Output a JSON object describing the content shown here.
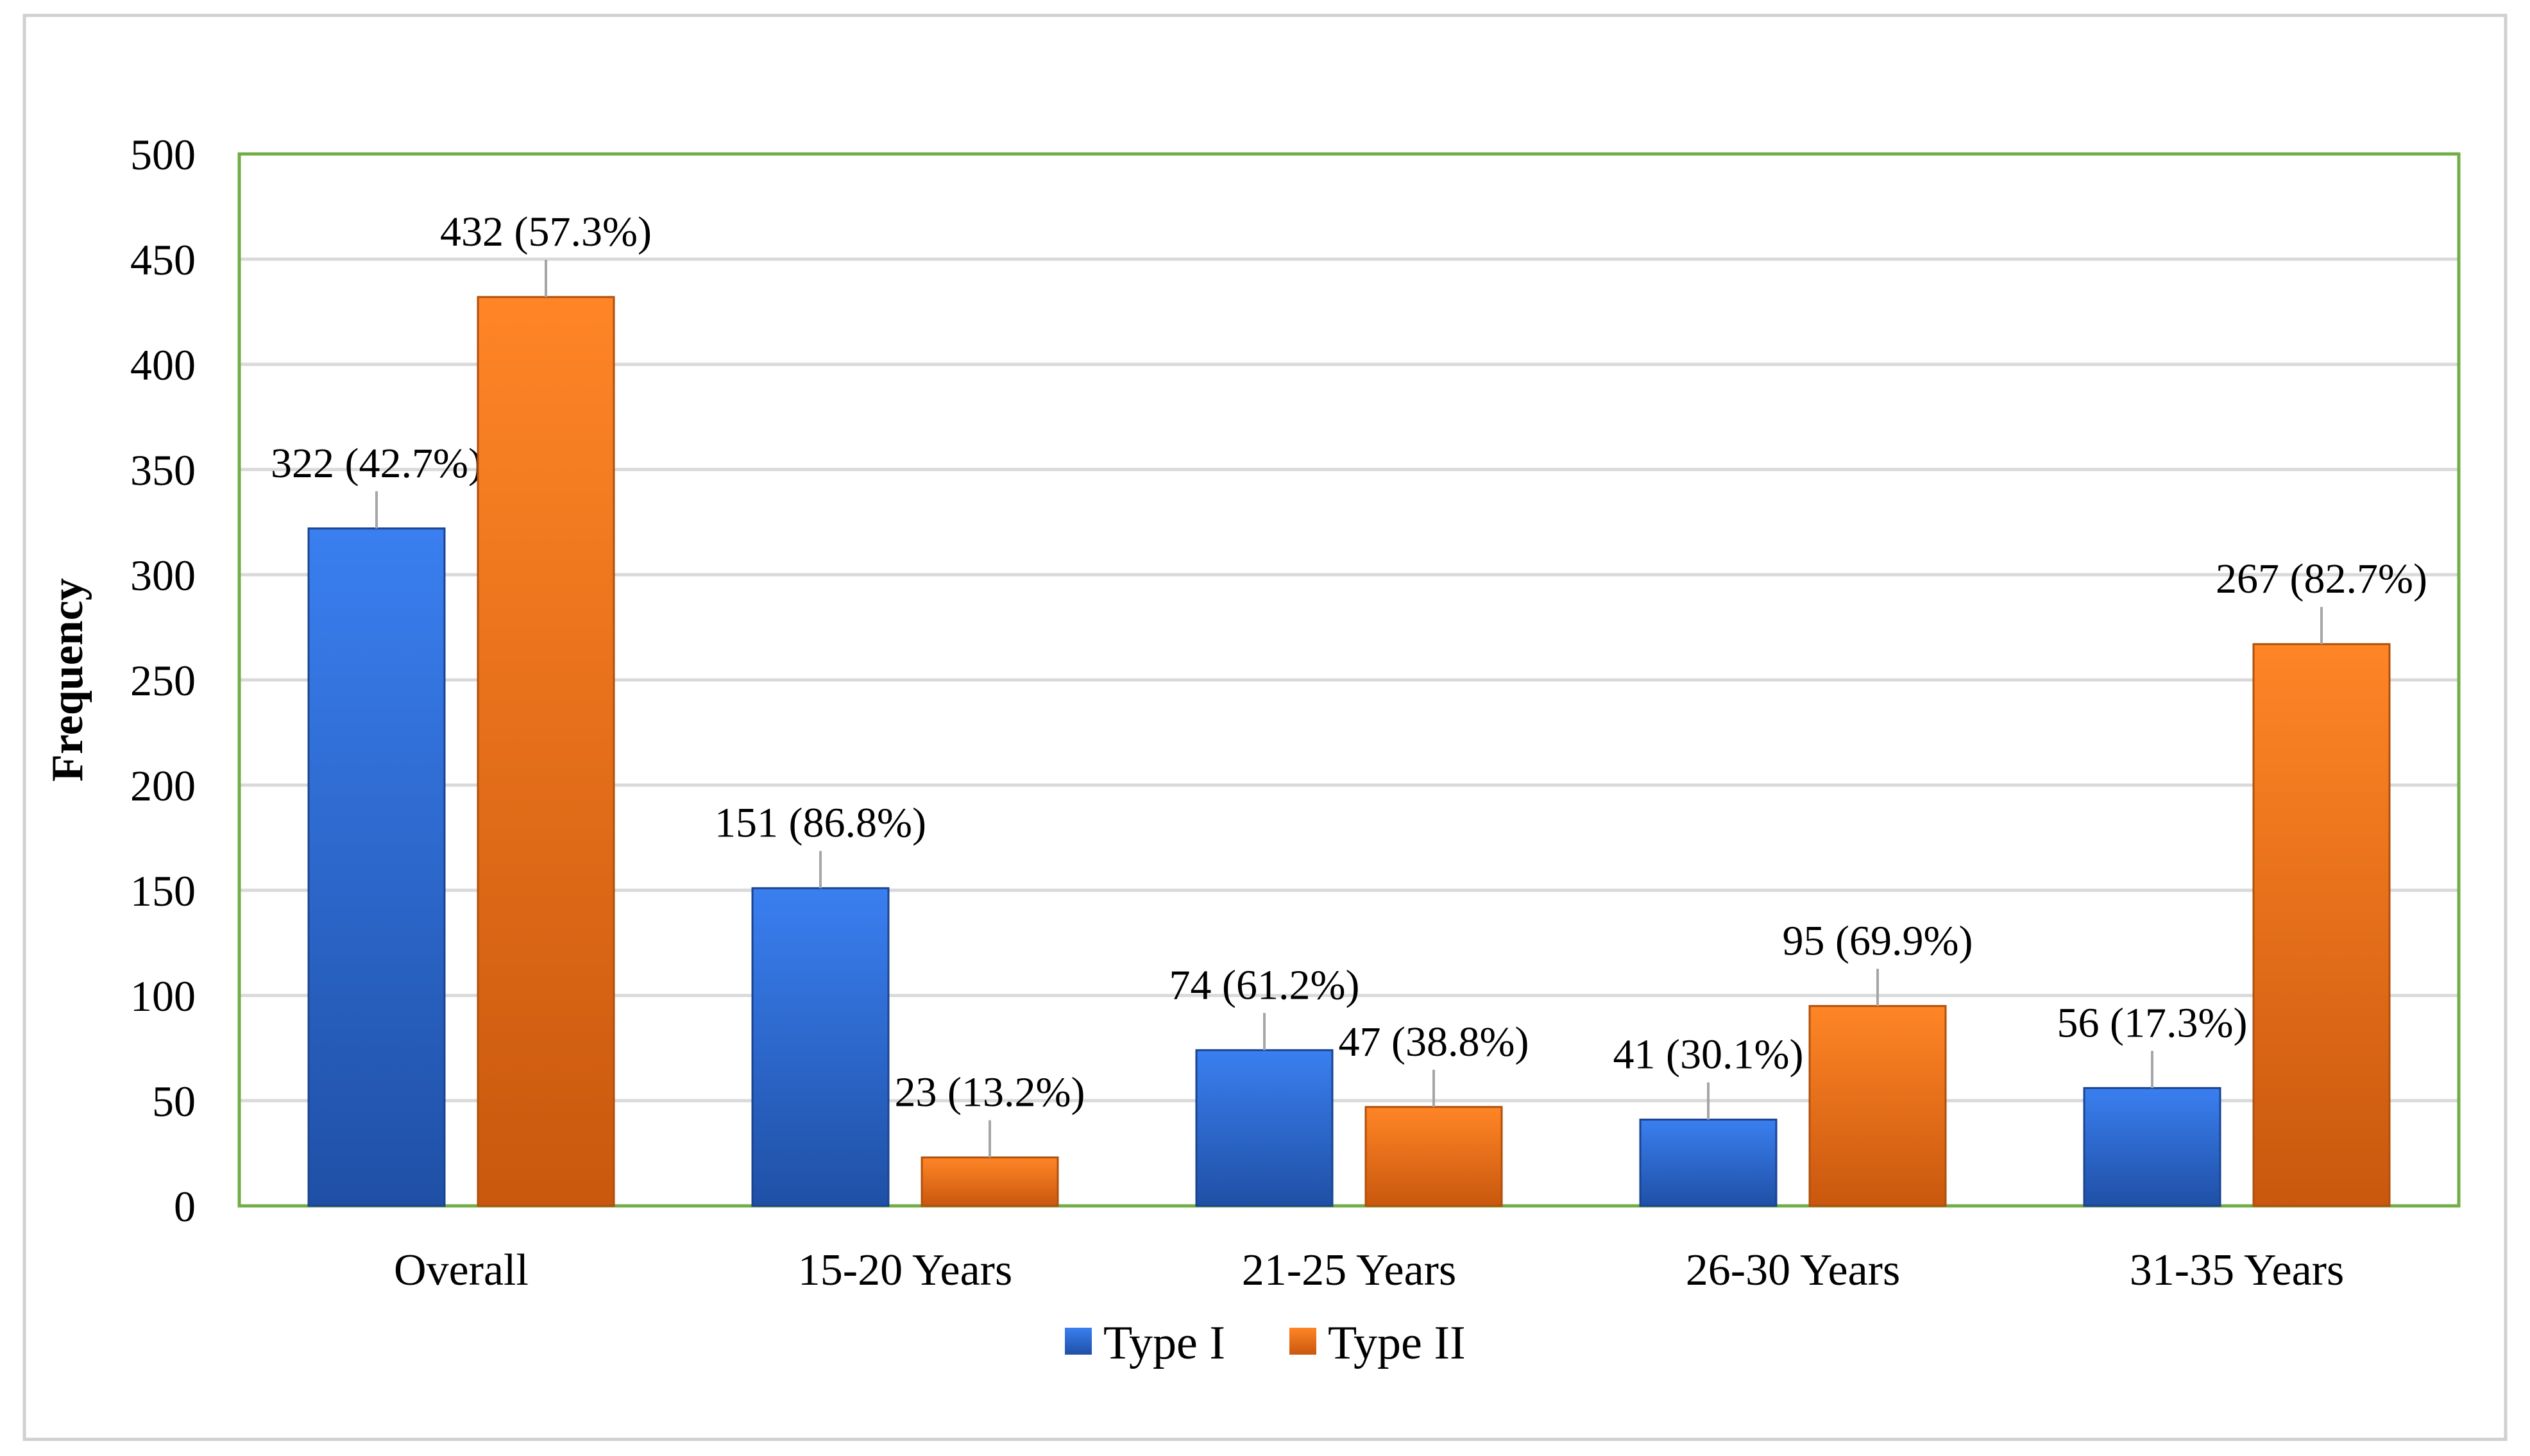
{
  "chart_data": {
    "type": "bar",
    "title": "",
    "xlabel": "",
    "ylabel": "Frequency",
    "ylim": [
      0,
      500
    ],
    "ytick_step": 50,
    "yticks": [
      "0",
      "50",
      "100",
      "150",
      "200",
      "250",
      "300",
      "350",
      "400",
      "450",
      "500"
    ],
    "grid": true,
    "legend_position": "bottom-center",
    "categories": [
      "Overall",
      "15-20 Years",
      "21-25 Years",
      "26-30 Years",
      "31-35 Years"
    ],
    "series": [
      {
        "name": "Type I",
        "color": "#2f6fd6",
        "values": [
          322,
          151,
          74,
          41,
          56
        ],
        "labels": [
          "322 (42.7%)",
          "151 (86.8%)",
          "74 (61.2%)",
          "41 (30.1%)",
          "56 (17.3%)"
        ]
      },
      {
        "name": "Type II",
        "color": "#ee7418",
        "values": [
          432,
          23,
          47,
          95,
          267
        ],
        "labels": [
          "432 (57.3%)",
          "23 (13.2%)",
          "47 (38.8%)",
          "95 (69.9%)",
          "267 (82.7%)"
        ]
      }
    ],
    "plot_border_color": "#70ad47",
    "gridline_color": "#d9d9d9"
  }
}
